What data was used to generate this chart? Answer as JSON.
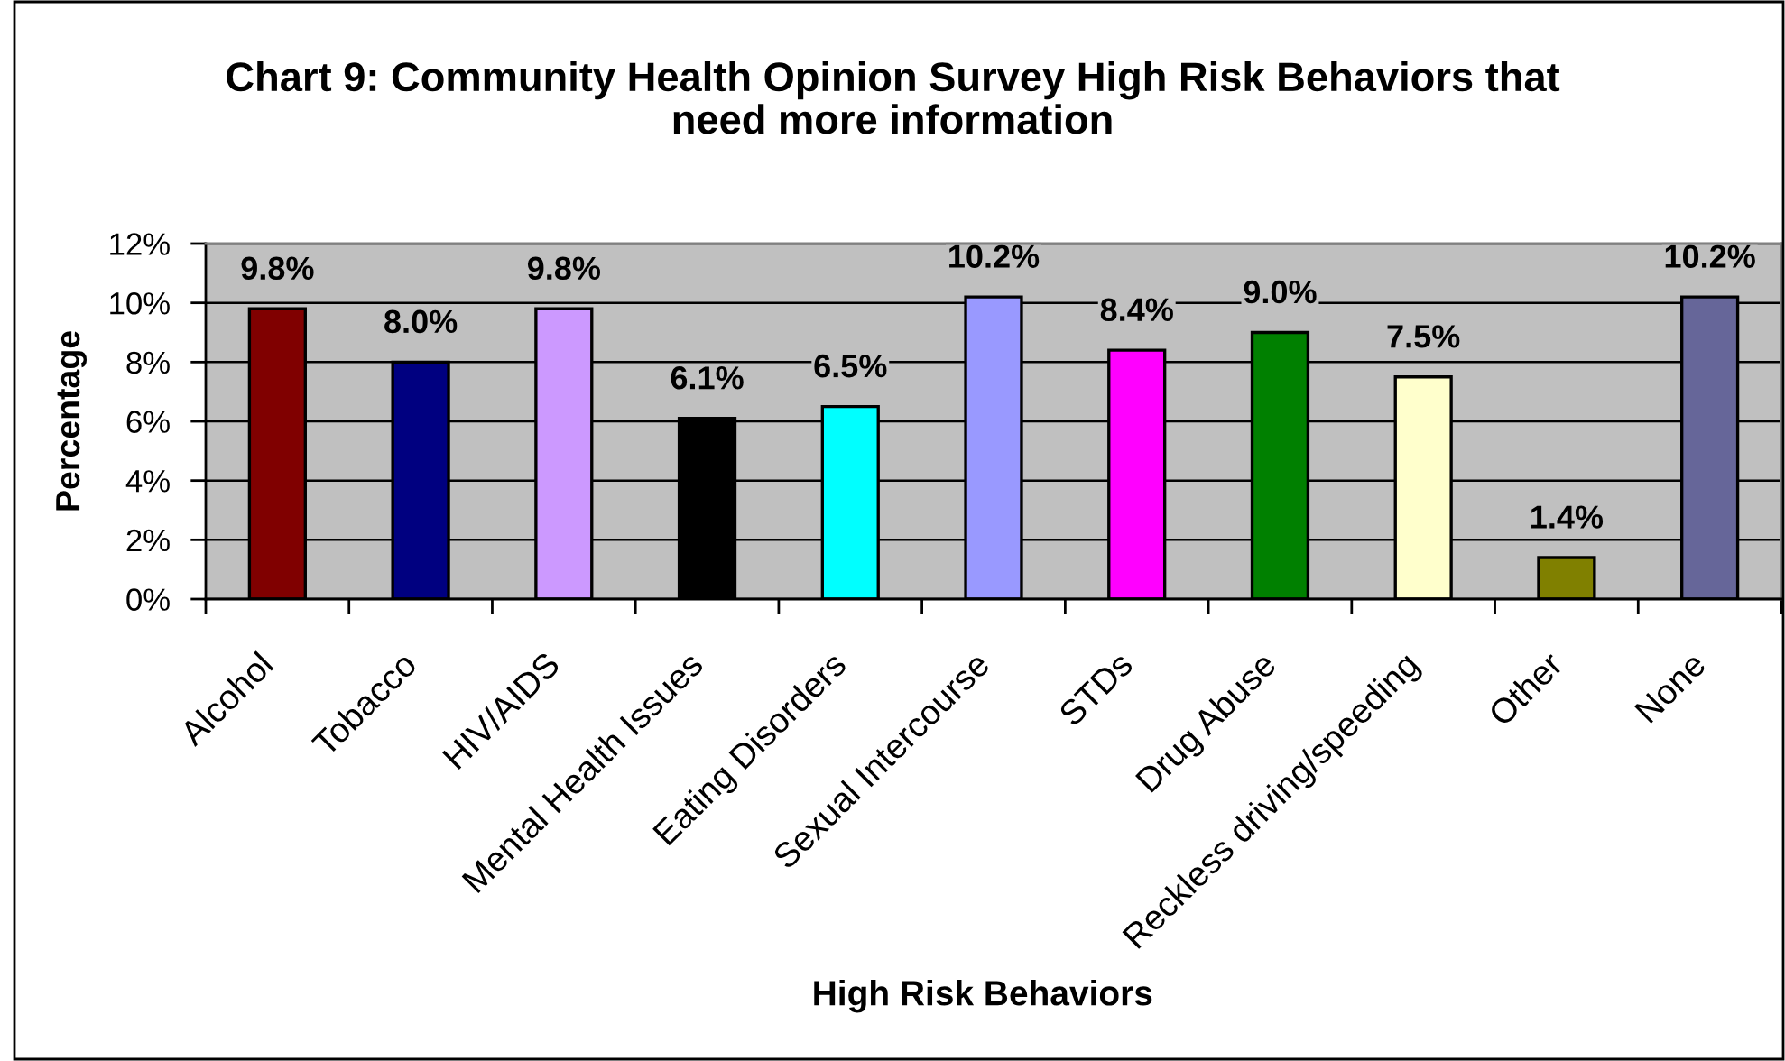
{
  "chart_data": {
    "type": "bar",
    "title": "Chart 9: Community Health Opinion Survey High Risk Behaviors that\nneed more information",
    "xlabel": "High Risk Behaviors",
    "ylabel": "Percentage",
    "categories": [
      "Alcohol",
      "Tobacco",
      "HIV/AIDS",
      "Mental Health Issues",
      "Eating Disorders",
      "Sexual Intercourse",
      "STDs",
      "Drug Abuse",
      "Reckless driving/speeding",
      "Other",
      "None"
    ],
    "values": [
      9.8,
      8.0,
      9.8,
      6.1,
      6.5,
      10.2,
      8.4,
      9.0,
      7.5,
      1.4,
      10.2
    ],
    "colors": [
      "#800000",
      "#000080",
      "#cc99ff",
      "#000000",
      "#00ffff",
      "#9999ff",
      "#ff00ff",
      "#008000",
      "#ffffcc",
      "#808000",
      "#666699"
    ],
    "value_labels": [
      "9.8%",
      "8.0%",
      "9.8%",
      "6.1%",
      "6.5%",
      "10.2%",
      "8.4%",
      "9.0%",
      "7.5%",
      "1.4%",
      "10.2%"
    ],
    "ylim": [
      0,
      12
    ],
    "yticks": [
      {
        "value": 0,
        "label": "0%"
      },
      {
        "value": 2,
        "label": "2%"
      },
      {
        "value": 4,
        "label": "4%"
      },
      {
        "value": 6,
        "label": "6%"
      },
      {
        "value": 8,
        "label": "8%"
      },
      {
        "value": 10,
        "label": "10%"
      },
      {
        "value": 12,
        "label": "12%"
      }
    ],
    "grid": "y"
  }
}
